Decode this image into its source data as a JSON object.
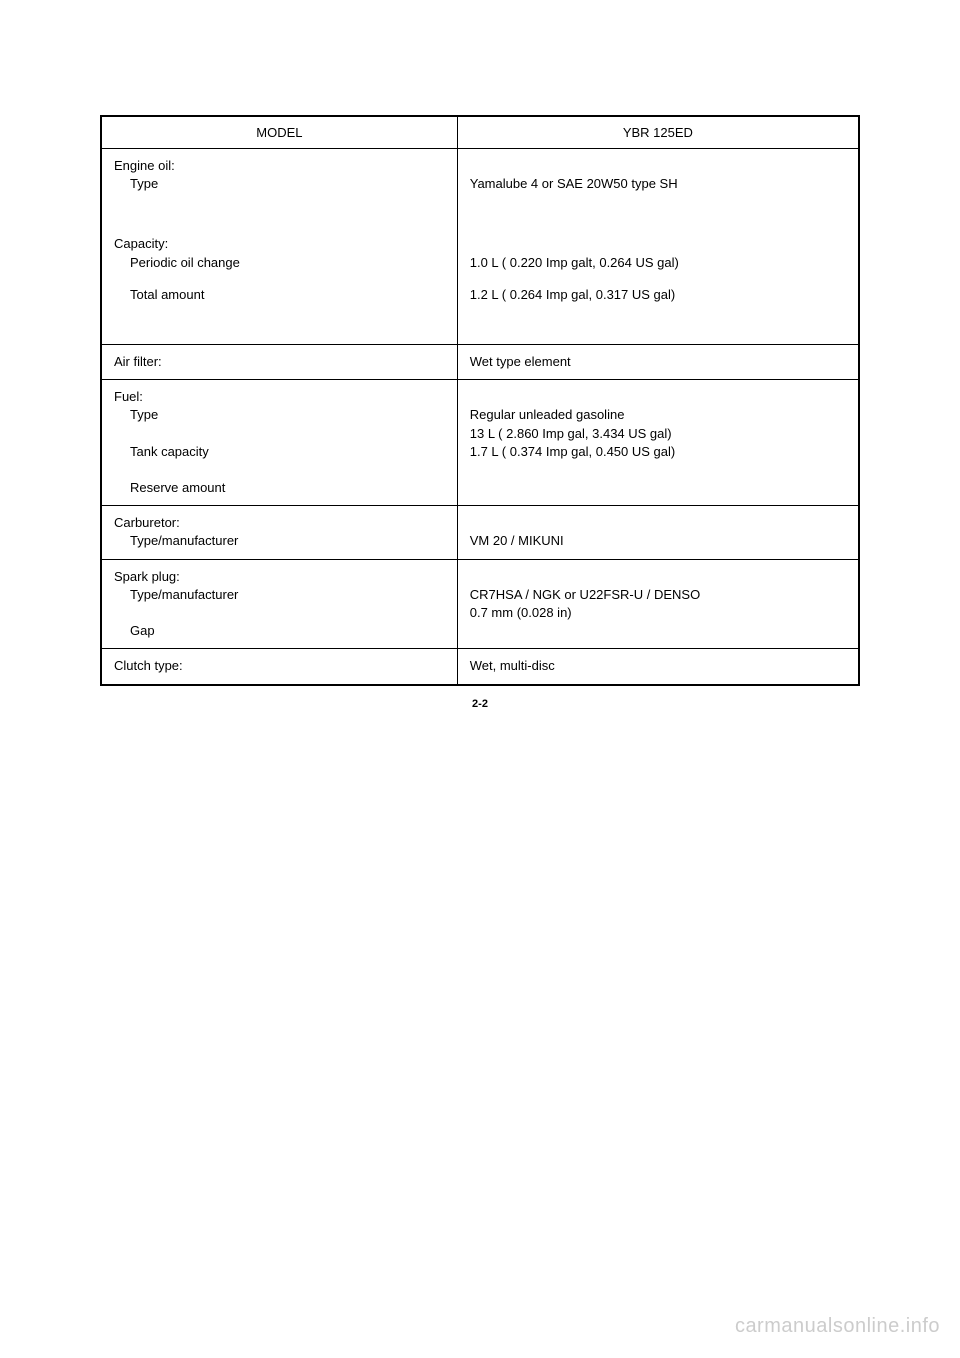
{
  "header": {
    "model_label": "MODEL",
    "model_value": "YBR 125ED"
  },
  "rows": {
    "engine_oil": {
      "label": "Engine oil:",
      "type_label": "Type",
      "type_value": "Yamalube 4  or SAE 20W50 type SH",
      "capacity_label": "Capacity:",
      "periodic_label": "Periodic oil change",
      "periodic_value": "1.0 L ( 0.220 Imp galt, 0.264 US gal)",
      "total_label": "Total amount",
      "total_value": "1.2 L ( 0.264 Imp gal, 0.317 US gal)"
    },
    "air_filter": {
      "label": "Air filter:",
      "value": "Wet type element"
    },
    "fuel": {
      "label": "Fuel:",
      "type_label": "Type",
      "type_value": "Regular unleaded gasoline",
      "tank_label": "Tank capacity",
      "tank_value": "13 L  ( 2.860 Imp gal, 3.434 US gal)",
      "reserve_label": "Reserve amount",
      "reserve_value": "1.7 L ( 0.374 Imp gal, 0.450 US gal)"
    },
    "carburetor": {
      "label": "Carburetor:",
      "type_label": "Type/manufacturer",
      "type_value": "VM 20 / MIKUNI"
    },
    "spark_plug": {
      "label": "Spark plug:",
      "type_label": "Type/manufacturer",
      "type_value": "CR7HSA / NGK or U22FSR-U / DENSO",
      "gap_label": "Gap",
      "gap_value": "0.7 mm (0.028 in)"
    },
    "clutch": {
      "label": "Clutch type:",
      "value": "Wet, multi-disc"
    }
  },
  "page_number": "2-2",
  "watermark": "carmanualsonline.info"
}
